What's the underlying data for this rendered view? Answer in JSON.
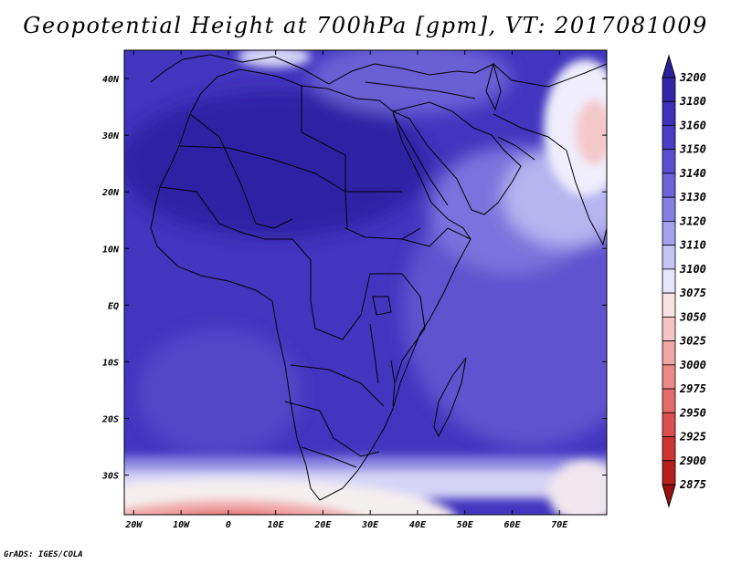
{
  "title": "Geopotential Height at 700hPa [gpm], VT: 2017081009",
  "footer": "GrADS: IGES/COLA",
  "map": {
    "lon_range": [
      -22,
      80
    ],
    "lat_range": [
      -37,
      45
    ],
    "lat_ticks": [
      {
        "value": 40,
        "label": "40N"
      },
      {
        "value": 30,
        "label": "30N"
      },
      {
        "value": 20,
        "label": "20N"
      },
      {
        "value": 10,
        "label": "10N"
      },
      {
        "value": 0,
        "label": "EQ"
      },
      {
        "value": -10,
        "label": "10S"
      },
      {
        "value": -20,
        "label": "20S"
      },
      {
        "value": -30,
        "label": "30S"
      }
    ],
    "lon_ticks": [
      {
        "value": -20,
        "label": "20W"
      },
      {
        "value": -10,
        "label": "10W"
      },
      {
        "value": 0,
        "label": "0"
      },
      {
        "value": 10,
        "label": "10E"
      },
      {
        "value": 20,
        "label": "20E"
      },
      {
        "value": 30,
        "label": "30E"
      },
      {
        "value": 40,
        "label": "40E"
      },
      {
        "value": 50,
        "label": "50E"
      },
      {
        "value": 60,
        "label": "60E"
      },
      {
        "value": 70,
        "label": "70E"
      }
    ]
  },
  "colorbar": {
    "levels": [
      3200,
      3180,
      3160,
      3150,
      3140,
      3130,
      3120,
      3110,
      3100,
      3075,
      3050,
      3025,
      3000,
      2975,
      2950,
      2925,
      2900,
      2875
    ],
    "colors": [
      "#2c1f9c",
      "#3525aa",
      "#3e30b8",
      "#4a3dc4",
      "#5a4ecf",
      "#6c63d8",
      "#8680e2",
      "#a4a0ec",
      "#c6c4f4",
      "#e6e6fa",
      "#fbe2e2",
      "#f6c4c4",
      "#f1a6a6",
      "#eb8888",
      "#e46b6b",
      "#dc4f4f",
      "#cf3434",
      "#b81e1e",
      "#9a1010"
    ]
  }
}
